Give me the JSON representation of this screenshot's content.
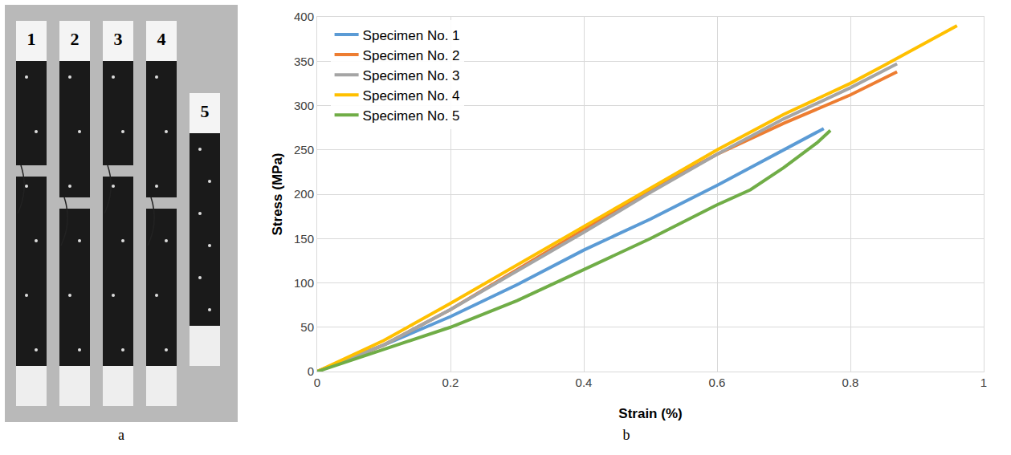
{
  "photo_panel": {
    "caption": "a",
    "specimen_labels": [
      "1",
      "2",
      "3",
      "4",
      "5"
    ]
  },
  "chart_panel": {
    "caption": "b"
  },
  "chart_data": {
    "type": "line",
    "x_label": "Strain (%)",
    "y_label": "Stress (MPa)",
    "xlim": [
      0,
      1
    ],
    "xticks": [
      0,
      0.2,
      0.4,
      0.6,
      0.8,
      1
    ],
    "ylim": [
      0,
      400
    ],
    "yticks": [
      0,
      50,
      100,
      150,
      200,
      250,
      300,
      350,
      400
    ],
    "grid": true,
    "legend": "top-left",
    "series": [
      {
        "name": "Specimen No. 1",
        "color": "#5b9bd5",
        "x": [
          0,
          0.1,
          0.2,
          0.3,
          0.4,
          0.5,
          0.6,
          0.7,
          0.76
        ],
        "values": [
          0,
          30,
          62,
          98,
          137,
          172,
          210,
          250,
          274
        ]
      },
      {
        "name": "Specimen No. 2",
        "color": "#ed7d31",
        "x": [
          0,
          0.1,
          0.2,
          0.3,
          0.4,
          0.5,
          0.6,
          0.7,
          0.8,
          0.87
        ],
        "values": [
          0,
          30,
          70,
          115,
          160,
          205,
          245,
          280,
          312,
          338
        ]
      },
      {
        "name": "Specimen No. 3",
        "color": "#a5a5a5",
        "x": [
          0,
          0.1,
          0.2,
          0.3,
          0.4,
          0.5,
          0.6,
          0.7,
          0.8,
          0.87
        ],
        "values": [
          0,
          30,
          70,
          113,
          157,
          202,
          245,
          285,
          320,
          347
        ]
      },
      {
        "name": "Specimen No. 4",
        "color": "#ffc000",
        "x": [
          0,
          0.1,
          0.2,
          0.3,
          0.4,
          0.5,
          0.6,
          0.7,
          0.8,
          0.85,
          0.9,
          0.96
        ],
        "values": [
          0,
          35,
          77,
          120,
          163,
          207,
          250,
          290,
          325,
          345,
          365,
          390
        ]
      },
      {
        "name": "Specimen No. 5",
        "color": "#70ad47",
        "x": [
          0,
          0.1,
          0.2,
          0.3,
          0.4,
          0.5,
          0.6,
          0.65,
          0.7,
          0.75,
          0.77
        ],
        "values": [
          0,
          25,
          50,
          80,
          115,
          150,
          188,
          205,
          230,
          258,
          272
        ]
      }
    ]
  }
}
